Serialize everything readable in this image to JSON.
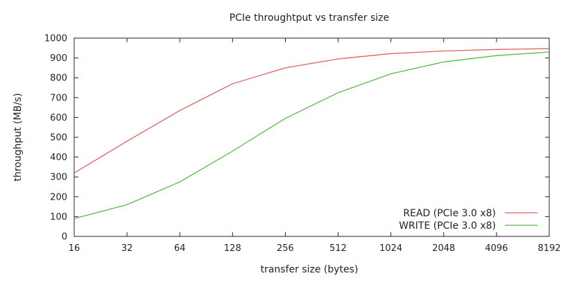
{
  "chart_data": {
    "type": "line",
    "title": "PCIe throughtput vs transfer size",
    "xlabel": "transfer size (bytes)",
    "ylabel": "throughput (MB/s)",
    "x_scale": "log2",
    "x": [
      16,
      32,
      64,
      128,
      256,
      512,
      1024,
      2048,
      4096,
      8192
    ],
    "x_tick_labels": [
      "16",
      "32",
      "64",
      "128",
      "256",
      "512",
      "1024",
      "2048",
      "4096",
      "8192"
    ],
    "ylim": [
      0,
      1000
    ],
    "y_ticks": [
      0,
      100,
      200,
      300,
      400,
      500,
      600,
      700,
      800,
      900,
      1000
    ],
    "grid": false,
    "legend_position": "bottom-right",
    "series": [
      {
        "name": "READ (PCIe 3.0 x8)",
        "color": "#e06060",
        "values": [
          320,
          480,
          635,
          770,
          850,
          895,
          922,
          935,
          943,
          947
        ]
      },
      {
        "name": "WRITE (PCIe 3.0 x8)",
        "color": "#55bb44",
        "values": [
          90,
          160,
          275,
          430,
          595,
          725,
          820,
          880,
          912,
          930
        ]
      }
    ]
  }
}
